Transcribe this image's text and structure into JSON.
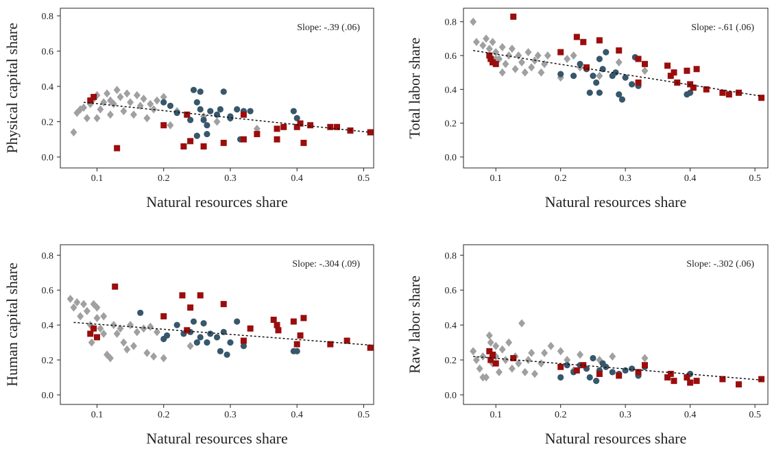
{
  "chart_data": [
    {
      "type": "scatter",
      "ylabel": "Physical capital share",
      "xlabel": "Natural resources share",
      "annotation": "Slope: -.39 (.06)",
      "xlim": [
        0.045,
        0.515
      ],
      "ylim": [
        -0.062,
        0.843
      ],
      "xticks": [
        0.1,
        0.2,
        0.3,
        0.4,
        0.5
      ],
      "yticks": [
        {
          "value": 0,
          "label": "0.0"
        },
        0.2,
        0.4,
        0.6,
        0.8
      ],
      "series": [
        {
          "color": "#a0a0a0",
          "marker": "diamond",
          "x": [
            0.065,
            0.07,
            0.075,
            0.08,
            0.085,
            0.09,
            0.095,
            0.1,
            0.105,
            0.11,
            0.115,
            0.12,
            0.125,
            0.13,
            0.135,
            0.14,
            0.145,
            0.15,
            0.155,
            0.16,
            0.165,
            0.17,
            0.175,
            0.18,
            0.185,
            0.19,
            0.2,
            0.21,
            0.22,
            0.26,
            0.28,
            0.3,
            0.34,
            0.1,
            0.12
          ],
          "values": [
            0.14,
            0.25,
            0.27,
            0.28,
            0.22,
            0.3,
            0.33,
            0.35,
            0.27,
            0.31,
            0.36,
            0.24,
            0.3,
            0.38,
            0.34,
            0.26,
            0.36,
            0.31,
            0.24,
            0.35,
            0.29,
            0.33,
            0.22,
            0.3,
            0.27,
            0.32,
            0.34,
            0.18,
            0.26,
            0.23,
            0.2,
            0.22,
            0.16,
            0.22,
            0.32
          ]
        },
        {
          "color": "#37576b",
          "marker": "circle",
          "x": [
            0.2,
            0.21,
            0.22,
            0.24,
            0.245,
            0.25,
            0.255,
            0.26,
            0.265,
            0.27,
            0.28,
            0.285,
            0.29,
            0.3,
            0.31,
            0.315,
            0.32,
            0.33,
            0.25,
            0.265,
            0.395,
            0.4,
            0.3,
            0.255
          ],
          "values": [
            0.31,
            0.29,
            0.25,
            0.21,
            0.38,
            0.31,
            0.37,
            0.21,
            0.18,
            0.26,
            0.24,
            0.27,
            0.37,
            0.22,
            0.27,
            0.1,
            0.26,
            0.26,
            0.12,
            0.13,
            0.26,
            0.22,
            0.23,
            0.27
          ]
        },
        {
          "color": "#9b0d0d",
          "marker": "square",
          "x": [
            0.09,
            0.095,
            0.13,
            0.2,
            0.23,
            0.24,
            0.235,
            0.26,
            0.29,
            0.32,
            0.32,
            0.34,
            0.37,
            0.37,
            0.38,
            0.4,
            0.405,
            0.41,
            0.42,
            0.45,
            0.46,
            0.48,
            0.51
          ],
          "values": [
            0.32,
            0.34,
            0.05,
            0.18,
            0.06,
            0.09,
            0.24,
            0.06,
            0.08,
            0.1,
            0.24,
            0.13,
            0.1,
            0.16,
            0.17,
            0.17,
            0.19,
            0.08,
            0.18,
            0.17,
            0.17,
            0.15,
            0.14
          ]
        }
      ],
      "trend": {
        "x": [
          0.08,
          0.51
        ],
        "values": [
          0.31,
          0.14
        ]
      }
    },
    {
      "type": "scatter",
      "ylabel": "Total labor share",
      "xlabel": "Natural resources share",
      "annotation": "Slope: -.61 (.06)",
      "xlim": [
        0.05,
        0.52
      ],
      "ylim": [
        -0.065,
        0.88
      ],
      "xticks": [
        0.1,
        0.2,
        0.3,
        0.4,
        0.5
      ],
      "yticks": [
        {
          "value": 0,
          "label": "0.0"
        },
        0.2,
        0.4,
        0.6,
        0.8
      ],
      "series": [
        {
          "color": "#a0a0a0",
          "marker": "diamond",
          "x": [
            0.065,
            0.07,
            0.08,
            0.085,
            0.09,
            0.095,
            0.1,
            0.105,
            0.11,
            0.115,
            0.12,
            0.125,
            0.13,
            0.135,
            0.14,
            0.145,
            0.15,
            0.155,
            0.16,
            0.165,
            0.17,
            0.175,
            0.18,
            0.2,
            0.21,
            0.22,
            0.23,
            0.26,
            0.29,
            0.33,
            0.11,
            0.1
          ],
          "values": [
            0.8,
            0.68,
            0.66,
            0.7,
            0.64,
            0.68,
            0.62,
            0.58,
            0.65,
            0.55,
            0.6,
            0.64,
            0.52,
            0.6,
            0.56,
            0.5,
            0.62,
            0.53,
            0.57,
            0.6,
            0.5,
            0.55,
            0.6,
            0.47,
            0.58,
            0.6,
            0.53,
            0.48,
            0.56,
            0.51,
            0.5,
            0.58
          ]
        },
        {
          "color": "#37576b",
          "marker": "circle",
          "x": [
            0.2,
            0.22,
            0.23,
            0.24,
            0.245,
            0.25,
            0.255,
            0.26,
            0.265,
            0.27,
            0.28,
            0.285,
            0.29,
            0.295,
            0.3,
            0.31,
            0.315,
            0.32,
            0.395,
            0.4,
            0.26
          ],
          "values": [
            0.49,
            0.48,
            0.55,
            0.52,
            0.38,
            0.48,
            0.44,
            0.38,
            0.52,
            0.62,
            0.48,
            0.5,
            0.37,
            0.34,
            0.47,
            0.43,
            0.59,
            0.42,
            0.37,
            0.38,
            0.58
          ]
        },
        {
          "color": "#9b0d0d",
          "marker": "square",
          "x": [
            0.09,
            0.092,
            0.095,
            0.1,
            0.127,
            0.2,
            0.225,
            0.235,
            0.24,
            0.26,
            0.29,
            0.32,
            0.32,
            0.33,
            0.365,
            0.37,
            0.375,
            0.38,
            0.395,
            0.4,
            0.405,
            0.41,
            0.425,
            0.45,
            0.46,
            0.475,
            0.51
          ],
          "values": [
            0.6,
            0.58,
            0.56,
            0.55,
            0.83,
            0.62,
            0.71,
            0.68,
            0.53,
            0.69,
            0.63,
            0.58,
            0.44,
            0.55,
            0.54,
            0.48,
            0.5,
            0.44,
            0.51,
            0.43,
            0.41,
            0.52,
            0.4,
            0.38,
            0.37,
            0.38,
            0.35
          ]
        }
      ],
      "trend": {
        "x": [
          0.065,
          0.51
        ],
        "values": [
          0.63,
          0.36
        ]
      }
    },
    {
      "type": "scatter",
      "ylabel": "Human capital share",
      "xlabel": "Natural resources share",
      "annotation": "Slope: -.304 (.09)",
      "xlim": [
        0.045,
        0.515
      ],
      "ylim": [
        -0.055,
        0.86
      ],
      "xticks": [
        0.1,
        0.2,
        0.3,
        0.4,
        0.5
      ],
      "yticks": [
        {
          "value": 0,
          "label": "0.0"
        },
        0.2,
        0.4,
        0.6,
        0.8
      ],
      "series": [
        {
          "color": "#a0a0a0",
          "marker": "diamond",
          "x": [
            0.06,
            0.065,
            0.07,
            0.075,
            0.08,
            0.085,
            0.09,
            0.092,
            0.095,
            0.1,
            0.105,
            0.11,
            0.115,
            0.12,
            0.125,
            0.13,
            0.135,
            0.14,
            0.145,
            0.15,
            0.155,
            0.16,
            0.17,
            0.175,
            0.18,
            0.185,
            0.19,
            0.2,
            0.24,
            0.1,
            0.11
          ],
          "values": [
            0.55,
            0.5,
            0.53,
            0.45,
            0.52,
            0.48,
            0.4,
            0.3,
            0.52,
            0.44,
            0.38,
            0.35,
            0.23,
            0.21,
            0.4,
            0.35,
            0.38,
            0.3,
            0.26,
            0.4,
            0.28,
            0.36,
            0.38,
            0.24,
            0.39,
            0.22,
            0.36,
            0.21,
            0.28,
            0.5,
            0.45
          ]
        },
        {
          "color": "#37576b",
          "marker": "circle",
          "x": [
            0.165,
            0.2,
            0.205,
            0.22,
            0.23,
            0.24,
            0.245,
            0.25,
            0.255,
            0.26,
            0.265,
            0.27,
            0.28,
            0.285,
            0.29,
            0.295,
            0.3,
            0.31,
            0.32,
            0.395,
            0.4
          ],
          "values": [
            0.47,
            0.32,
            0.34,
            0.4,
            0.35,
            0.36,
            0.42,
            0.3,
            0.33,
            0.41,
            0.3,
            0.35,
            0.33,
            0.25,
            0.36,
            0.23,
            0.3,
            0.42,
            0.28,
            0.25,
            0.25
          ]
        },
        {
          "color": "#9b0d0d",
          "marker": "square",
          "x": [
            0.09,
            0.095,
            0.1,
            0.127,
            0.2,
            0.228,
            0.24,
            0.235,
            0.255,
            0.29,
            0.32,
            0.33,
            0.365,
            0.37,
            0.372,
            0.395,
            0.4,
            0.405,
            0.41,
            0.45,
            0.475,
            0.51
          ],
          "values": [
            0.35,
            0.38,
            0.33,
            0.62,
            0.45,
            0.57,
            0.5,
            0.37,
            0.57,
            0.52,
            0.31,
            0.38,
            0.43,
            0.4,
            0.37,
            0.42,
            0.29,
            0.34,
            0.44,
            0.29,
            0.31,
            0.27
          ]
        }
      ],
      "trend": {
        "x": [
          0.065,
          0.51
        ],
        "values": [
          0.415,
          0.285
        ]
      }
    },
    {
      "type": "scatter",
      "ylabel": "Raw labor share",
      "xlabel": "Natural resources share",
      "annotation": "Slope: -.302 (.06)",
      "xlim": [
        0.05,
        0.52
      ],
      "ylim": [
        -0.055,
        0.86
      ],
      "xticks": [
        0.1,
        0.2,
        0.3,
        0.4,
        0.5
      ],
      "yticks": [
        {
          "value": 0,
          "label": "0.0"
        },
        0.2,
        0.4,
        0.6,
        0.8
      ],
      "series": [
        {
          "color": "#a0a0a0",
          "marker": "diamond",
          "x": [
            0.065,
            0.07,
            0.075,
            0.08,
            0.085,
            0.09,
            0.092,
            0.095,
            0.1,
            0.105,
            0.11,
            0.115,
            0.12,
            0.125,
            0.13,
            0.135,
            0.14,
            0.145,
            0.15,
            0.155,
            0.16,
            0.17,
            0.175,
            0.185,
            0.2,
            0.21,
            0.22,
            0.23,
            0.26,
            0.28,
            0.33,
            0.1,
            0.08
          ],
          "values": [
            0.25,
            0.2,
            0.15,
            0.22,
            0.1,
            0.34,
            0.3,
            0.18,
            0.28,
            0.13,
            0.26,
            0.2,
            0.3,
            0.15,
            0.22,
            0.18,
            0.41,
            0.13,
            0.2,
            0.24,
            0.12,
            0.18,
            0.24,
            0.28,
            0.25,
            0.2,
            0.14,
            0.23,
            0.2,
            0.22,
            0.21,
            0.22,
            0.1
          ]
        },
        {
          "color": "#37576b",
          "marker": "circle",
          "x": [
            0.2,
            0.21,
            0.22,
            0.23,
            0.24,
            0.245,
            0.25,
            0.255,
            0.26,
            0.265,
            0.27,
            0.28,
            0.29,
            0.3,
            0.31,
            0.32,
            0.33,
            0.395,
            0.4
          ],
          "values": [
            0.1,
            0.17,
            0.13,
            0.17,
            0.15,
            0.1,
            0.21,
            0.08,
            0.14,
            0.18,
            0.16,
            0.13,
            0.12,
            0.14,
            0.15,
            0.11,
            0.16,
            0.1,
            0.12
          ]
        },
        {
          "color": "#9b0d0d",
          "marker": "square",
          "x": [
            0.09,
            0.092,
            0.095,
            0.1,
            0.127,
            0.2,
            0.225,
            0.235,
            0.26,
            0.29,
            0.32,
            0.33,
            0.365,
            0.37,
            0.375,
            0.395,
            0.4,
            0.41,
            0.45,
            0.475,
            0.51
          ],
          "values": [
            0.25,
            0.2,
            0.23,
            0.18,
            0.21,
            0.16,
            0.14,
            0.17,
            0.12,
            0.11,
            0.13,
            0.17,
            0.1,
            0.12,
            0.08,
            0.1,
            0.07,
            0.08,
            0.09,
            0.06,
            0.09
          ]
        }
      ],
      "trend": {
        "x": [
          0.065,
          0.51
        ],
        "values": [
          0.22,
          0.085
        ]
      }
    }
  ]
}
